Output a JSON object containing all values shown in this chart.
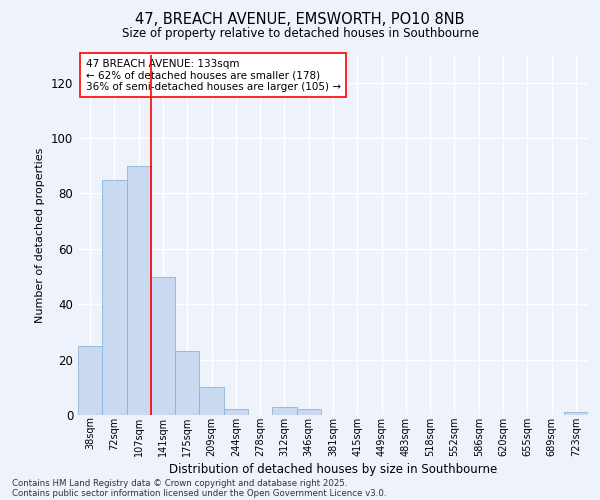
{
  "title_line1": "47, BREACH AVENUE, EMSWORTH, PO10 8NB",
  "title_line2": "Size of property relative to detached houses in Southbourne",
  "xlabel": "Distribution of detached houses by size in Southbourne",
  "ylabel": "Number of detached properties",
  "bar_values": [
    25,
    85,
    90,
    50,
    23,
    10,
    2,
    0,
    3,
    2,
    0,
    0,
    0,
    0,
    0,
    0,
    0,
    0,
    0,
    0,
    1
  ],
  "bar_labels": [
    "38sqm",
    "72sqm",
    "107sqm",
    "141sqm",
    "175sqm",
    "209sqm",
    "244sqm",
    "278sqm",
    "312sqm",
    "346sqm",
    "381sqm",
    "415sqm",
    "449sqm",
    "483sqm",
    "518sqm",
    "552sqm",
    "586sqm",
    "620sqm",
    "655sqm",
    "689sqm",
    "723sqm"
  ],
  "bar_color": "#c9d9f0",
  "bar_edgecolor": "#8ab4d8",
  "annotation_line1": "47 BREACH AVENUE: 133sqm",
  "annotation_line2": "← 62% of detached houses are smaller (178)",
  "annotation_line3": "36% of semi-detached houses are larger (105) →",
  "red_line_x": 2.5,
  "ylim": [
    0,
    130
  ],
  "yticks": [
    0,
    20,
    40,
    60,
    80,
    100,
    120
  ],
  "background_color": "#eef2fb",
  "grid_color": "#ffffff",
  "footer_line1": "Contains HM Land Registry data © Crown copyright and database right 2025.",
  "footer_line2": "Contains public sector information licensed under the Open Government Licence v3.0."
}
